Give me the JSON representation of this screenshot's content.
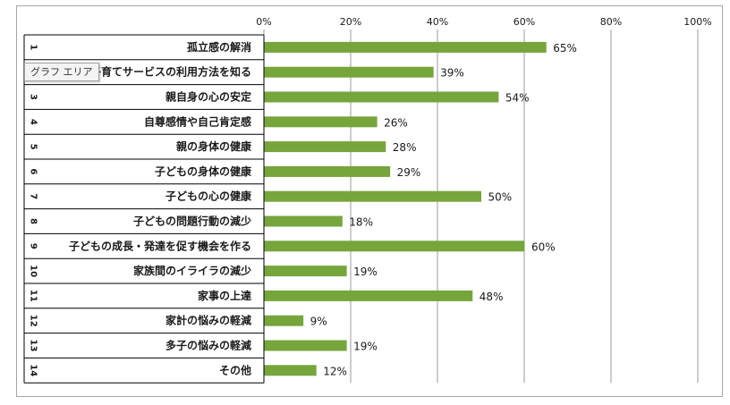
{
  "tooltip": {
    "text": "グラフ エリア"
  },
  "colors": {
    "bar": "#76a53c",
    "border": "#a6a6a6",
    "grid": "#9a9a9a",
    "text": "#1a1a1a"
  },
  "chart_data": {
    "type": "bar",
    "orientation": "horizontal",
    "title": "",
    "xlabel": "",
    "ylabel": "",
    "xlim": [
      0,
      100
    ],
    "x_ticks": [
      "0%",
      "20%",
      "40%",
      "60%",
      "80%",
      "100%"
    ],
    "x_tick_values": [
      0,
      20,
      40,
      60,
      80,
      100
    ],
    "grid": true,
    "legend": "none",
    "row_numbers": [
      "1",
      "2",
      "3",
      "4",
      "5",
      "6",
      "7",
      "8",
      "9",
      "10",
      "11",
      "12",
      "13",
      "14"
    ],
    "categories": [
      "孤立感の解消",
      "子育てサービスの利用方法を知る",
      "親自身の心の安定",
      "自尊感情や自己肯定感",
      "親の身体の健康",
      "子どもの身体の健康",
      "子どもの心の健康",
      "子どもの問題行動の減少",
      "子どもの成長・発達を促す機会を作る",
      "家族間のイライラの減少",
      "家事の上達",
      "家計の悩みの軽減",
      "多子の悩みの軽減",
      "その他"
    ],
    "values": [
      65,
      39,
      54,
      26,
      28,
      29,
      50,
      18,
      60,
      19,
      48,
      9,
      19,
      12
    ],
    "value_labels": [
      "65%",
      "39%",
      "54%",
      "26%",
      "28%",
      "29%",
      "50%",
      "18%",
      "60%",
      "19%",
      "48%",
      "9%",
      "19%",
      "12%"
    ]
  }
}
